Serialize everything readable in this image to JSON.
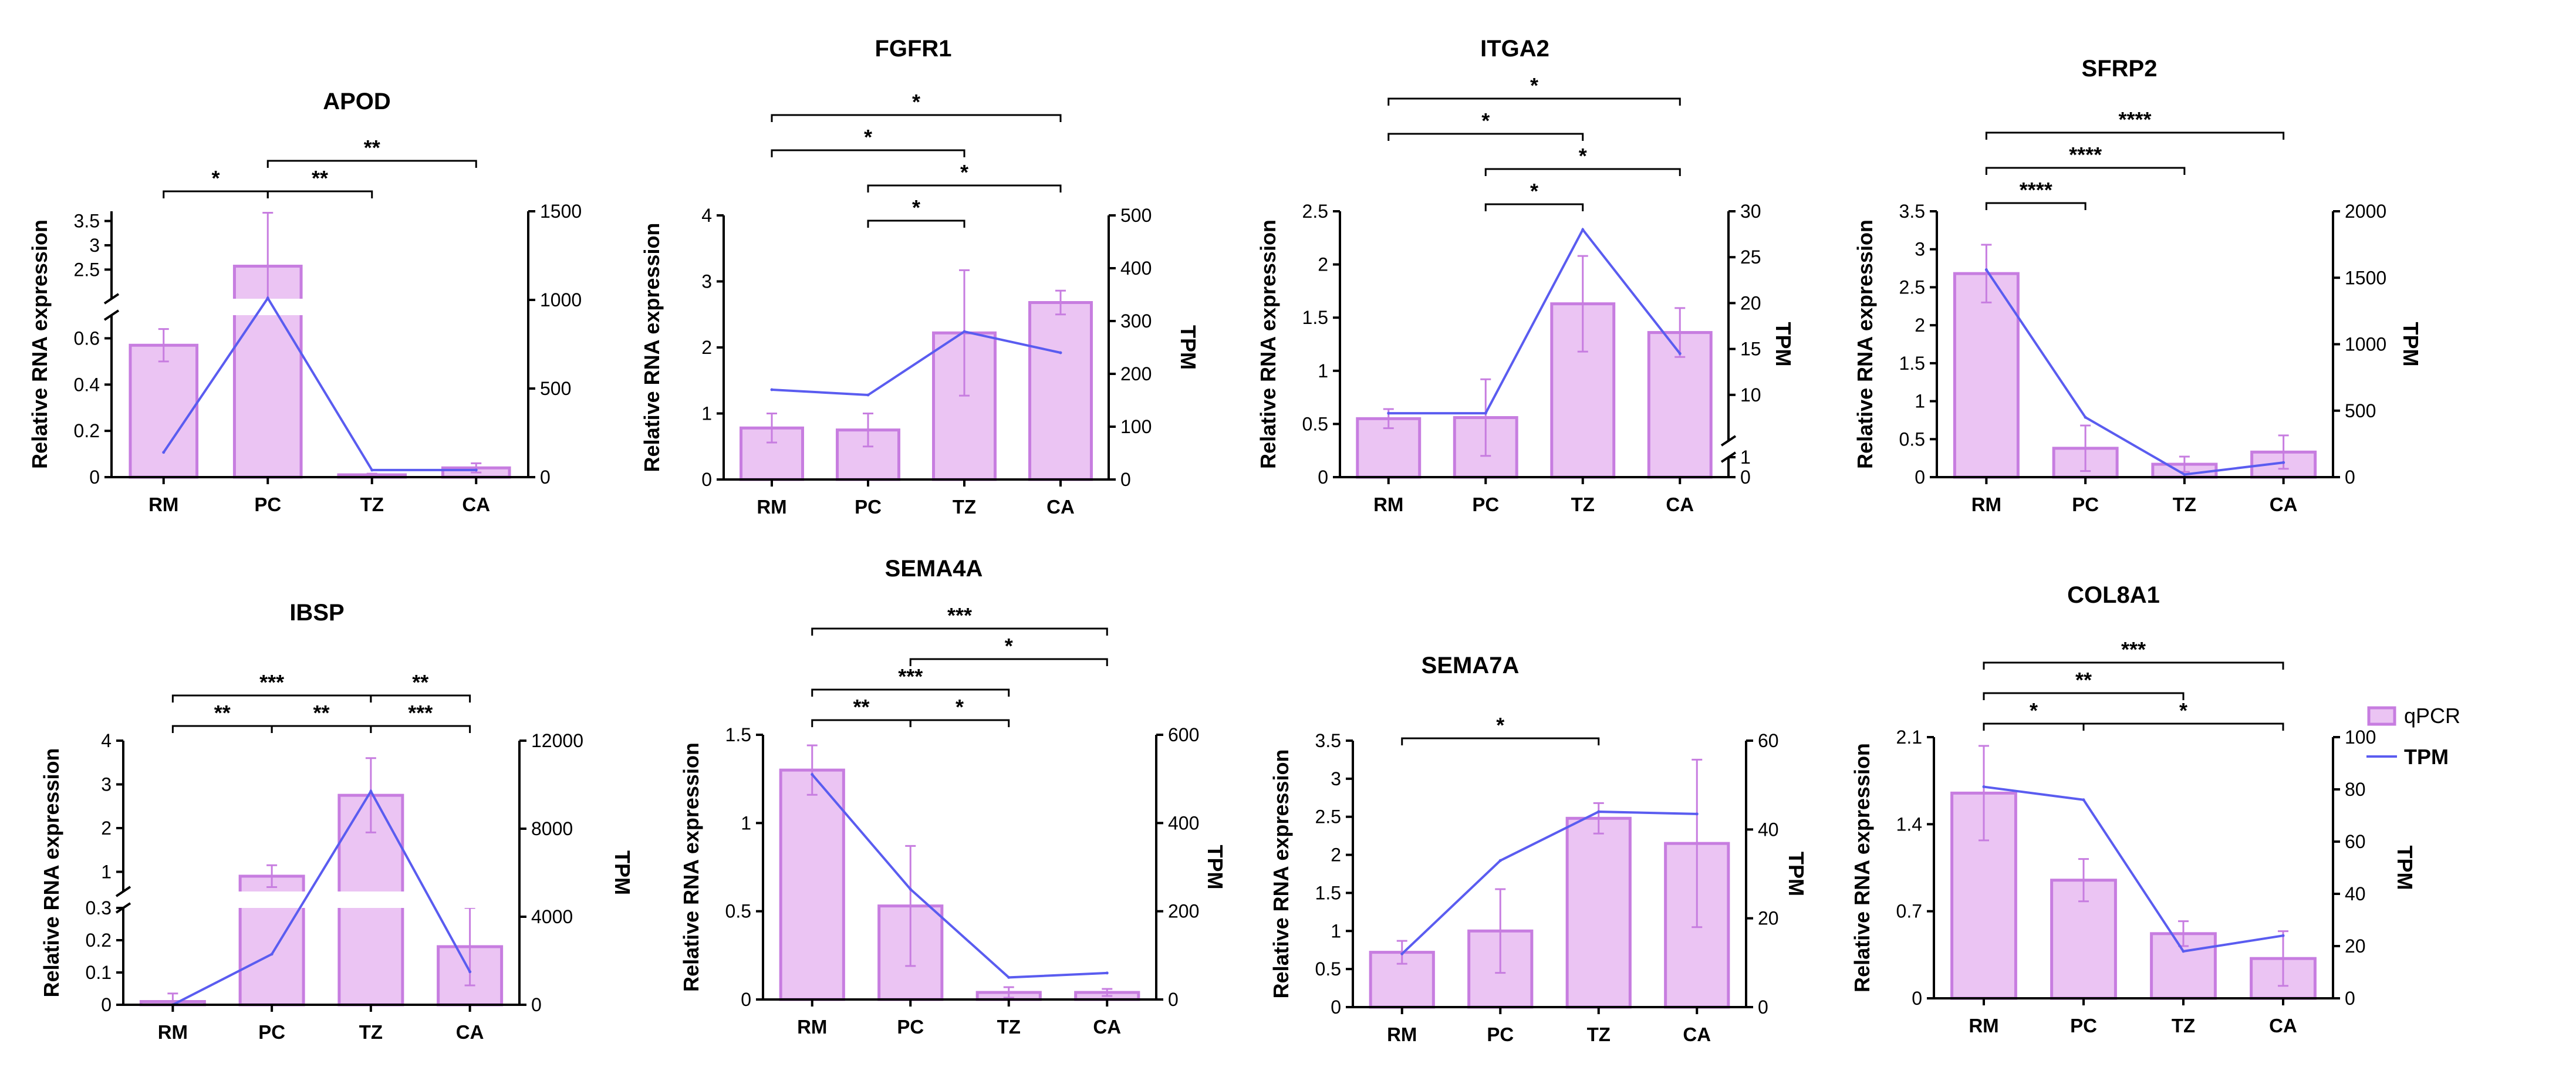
{
  "figure": {
    "legend": {
      "qpcr": "qPCR",
      "tpm": "TPM"
    },
    "colors": {
      "bar_fill": "#ebc4f3",
      "bar_stroke": "#c77de0",
      "line": "#5a5cf0",
      "axis": "#000000"
    }
  },
  "chart_data": [
    {
      "type": "bar+line",
      "title": "APOD",
      "ylabel": "Relative RNA expression",
      "y2label": "",
      "categories": [
        "RM",
        "PC",
        "TZ",
        "CA"
      ],
      "bars": [
        0.57,
        2.57,
        0.01,
        0.04
      ],
      "errors": [
        0.07,
        1.1,
        0.005,
        0.02
      ],
      "tpm": [
        140,
        1010,
        40,
        40
      ],
      "yaxis": {
        "broken": true,
        "lower_range": [
          0,
          0.7
        ],
        "lower_ticks": [
          0,
          0.2,
          0.4,
          0.6
        ],
        "upper_range": [
          1.9,
          3.7
        ],
        "upper_ticks": [
          2.5,
          3.0,
          3.5
        ]
      },
      "y2range": [
        0,
        1500
      ],
      "y2ticks": [
        0,
        500,
        1000,
        1500
      ],
      "significance": [
        {
          "from": "RM",
          "to": "PC",
          "label": "*"
        },
        {
          "from": "PC",
          "to": "TZ",
          "label": "**"
        },
        {
          "from": "PC",
          "to": "CA",
          "label": "**"
        }
      ]
    },
    {
      "type": "bar+line",
      "title": "FGFR1",
      "ylabel": "Relative RNA expression",
      "y2label": "TPM",
      "categories": [
        "RM",
        "PC",
        "TZ",
        "CA"
      ],
      "bars": [
        0.78,
        0.75,
        2.22,
        2.68
      ],
      "errors": [
        0.22,
        0.25,
        0.95,
        0.18
      ],
      "tpm": [
        170,
        160,
        280,
        240
      ],
      "yrange": [
        0,
        4
      ],
      "yticks": [
        0,
        1,
        2,
        3,
        4
      ],
      "y2range": [
        0,
        500
      ],
      "y2ticks": [
        0,
        100,
        200,
        300,
        400,
        500
      ],
      "significance": [
        {
          "from": "PC",
          "to": "TZ",
          "label": "*"
        },
        {
          "from": "PC",
          "to": "CA",
          "label": "*"
        },
        {
          "from": "RM",
          "to": "TZ",
          "label": "*"
        },
        {
          "from": "RM",
          "to": "CA",
          "label": "*"
        }
      ]
    },
    {
      "type": "bar+line",
      "title": "ITGA2",
      "ylabel": "Relative RNA expression",
      "y2label": "TPM",
      "categories": [
        "RM",
        "PC",
        "TZ",
        "CA"
      ],
      "bars": [
        0.55,
        0.56,
        1.63,
        1.36
      ],
      "errors": [
        0.09,
        0.36,
        0.45,
        0.23
      ],
      "tpm": [
        8,
        8,
        28,
        14.5
      ],
      "yrange": [
        0,
        2.5
      ],
      "yticks": [
        0,
        0.5,
        1.0,
        1.5,
        2.0,
        2.5
      ],
      "y2axis": {
        "broken": true,
        "lower_range": [
          0,
          1
        ],
        "lower_ticks": [
          0,
          1
        ],
        "upper_range": [
          5,
          30
        ],
        "upper_ticks": [
          10,
          15,
          20,
          25,
          30
        ]
      },
      "significance": [
        {
          "from": "PC",
          "to": "TZ",
          "label": "*"
        },
        {
          "from": "PC",
          "to": "CA",
          "label": "*"
        },
        {
          "from": "RM",
          "to": "TZ",
          "label": "*"
        },
        {
          "from": "RM",
          "to": "CA",
          "label": "*"
        }
      ]
    },
    {
      "type": "bar+line",
      "title": "SFRP2",
      "ylabel": "Relative RNA expression",
      "y2label": "TPM",
      "categories": [
        "RM",
        "PC",
        "TZ",
        "CA"
      ],
      "bars": [
        2.68,
        0.38,
        0.17,
        0.33
      ],
      "errors": [
        0.38,
        0.3,
        0.1,
        0.22
      ],
      "tpm": [
        1560,
        450,
        20,
        110
      ],
      "yrange": [
        0,
        3.5
      ],
      "yticks": [
        0,
        0.5,
        1.0,
        1.5,
        2.0,
        2.5,
        3.0,
        3.5
      ],
      "y2range": [
        0,
        2000
      ],
      "y2ticks": [
        0,
        500,
        1000,
        1500,
        2000
      ],
      "significance": [
        {
          "from": "RM",
          "to": "PC",
          "label": "****"
        },
        {
          "from": "RM",
          "to": "TZ",
          "label": "****"
        },
        {
          "from": "RM",
          "to": "CA",
          "label": "****"
        }
      ]
    },
    {
      "type": "bar+line",
      "title": "IBSP",
      "ylabel": "Relative RNA expression",
      "y2label": "TPM",
      "categories": [
        "RM",
        "PC",
        "TZ",
        "CA"
      ],
      "bars": [
        0.01,
        0.9,
        2.75,
        0.18
      ],
      "errors": [
        0.025,
        0.25,
        0.85,
        0.12
      ],
      "tpm": [
        0,
        2300,
        9700,
        1500
      ],
      "yaxis": {
        "broken": true,
        "lower_range": [
          0,
          0.3
        ],
        "lower_ticks": [
          0,
          0.1,
          0.2,
          0.3
        ],
        "upper_range": [
          0.55,
          4
        ],
        "upper_ticks": [
          1,
          2,
          3,
          4
        ]
      },
      "y2range": [
        0,
        12000
      ],
      "y2ticks": [
        0,
        4000,
        8000,
        12000
      ],
      "significance": [
        {
          "from": "RM",
          "to": "PC",
          "label": "**"
        },
        {
          "from": "PC",
          "to": "TZ",
          "label": "**"
        },
        {
          "from": "TZ",
          "to": "CA",
          "label": "***"
        },
        {
          "from": "RM",
          "to": "TZ",
          "label": "***"
        },
        {
          "from": "TZ",
          "to": "CA",
          "label": "**"
        }
      ]
    },
    {
      "type": "bar+line",
      "title": "SEMA4A",
      "ylabel": "Relative RNA expression",
      "y2label": "TPM",
      "categories": [
        "RM",
        "PC",
        "TZ",
        "CA"
      ],
      "bars": [
        1.3,
        0.53,
        0.04,
        0.04
      ],
      "errors": [
        0.14,
        0.34,
        0.03,
        0.02
      ],
      "tpm": [
        510,
        250,
        50,
        60
      ],
      "yrange": [
        0,
        1.5
      ],
      "yticks": [
        0,
        0.5,
        1.0,
        1.5
      ],
      "y2range": [
        0,
        600
      ],
      "y2ticks": [
        0,
        200,
        400,
        600
      ],
      "significance": [
        {
          "from": "RM",
          "to": "PC",
          "label": "**"
        },
        {
          "from": "PC",
          "to": "TZ",
          "label": "*"
        },
        {
          "from": "RM",
          "to": "TZ",
          "label": "***"
        },
        {
          "from": "PC",
          "to": "CA",
          "label": "*"
        },
        {
          "from": "RM",
          "to": "CA",
          "label": "***"
        }
      ]
    },
    {
      "type": "bar+line",
      "title": "SEMA7A",
      "ylabel": "Relative RNA expression",
      "y2label": "TPM",
      "categories": [
        "RM",
        "PC",
        "TZ",
        "CA"
      ],
      "bars": [
        0.72,
        1.0,
        2.48,
        2.15
      ],
      "errors": [
        0.15,
        0.55,
        0.2,
        1.1
      ],
      "tpm": [
        12,
        33,
        44,
        43.5
      ],
      "yrange": [
        0,
        3.5
      ],
      "yticks": [
        0,
        0.5,
        1.0,
        1.5,
        2.0,
        2.5,
        3.0,
        3.5
      ],
      "y2range": [
        0,
        60
      ],
      "y2ticks": [
        0,
        20,
        40,
        60
      ],
      "significance": [
        {
          "from": "RM",
          "to": "TZ",
          "label": "*"
        }
      ]
    },
    {
      "type": "bar+line",
      "title": "COL8A1",
      "ylabel": "Relative RNA expression",
      "y2label": "TPM",
      "categories": [
        "RM",
        "PC",
        "TZ",
        "CA"
      ],
      "bars": [
        1.65,
        0.95,
        0.52,
        0.32
      ],
      "errors": [
        0.38,
        0.17,
        0.1,
        0.22
      ],
      "tpm": [
        81,
        76,
        18,
        24
      ],
      "yrange": [
        0,
        2.1
      ],
      "yticks": [
        0,
        0.7,
        1.4,
        2.1
      ],
      "y2range": [
        0,
        100
      ],
      "y2ticks": [
        0,
        20,
        40,
        60,
        80,
        100
      ],
      "significance": [
        {
          "from": "RM",
          "to": "PC",
          "label": "*"
        },
        {
          "from": "PC",
          "to": "CA",
          "label": "*"
        },
        {
          "from": "RM",
          "to": "TZ",
          "label": "**"
        },
        {
          "from": "RM",
          "to": "CA",
          "label": "***"
        }
      ]
    }
  ]
}
